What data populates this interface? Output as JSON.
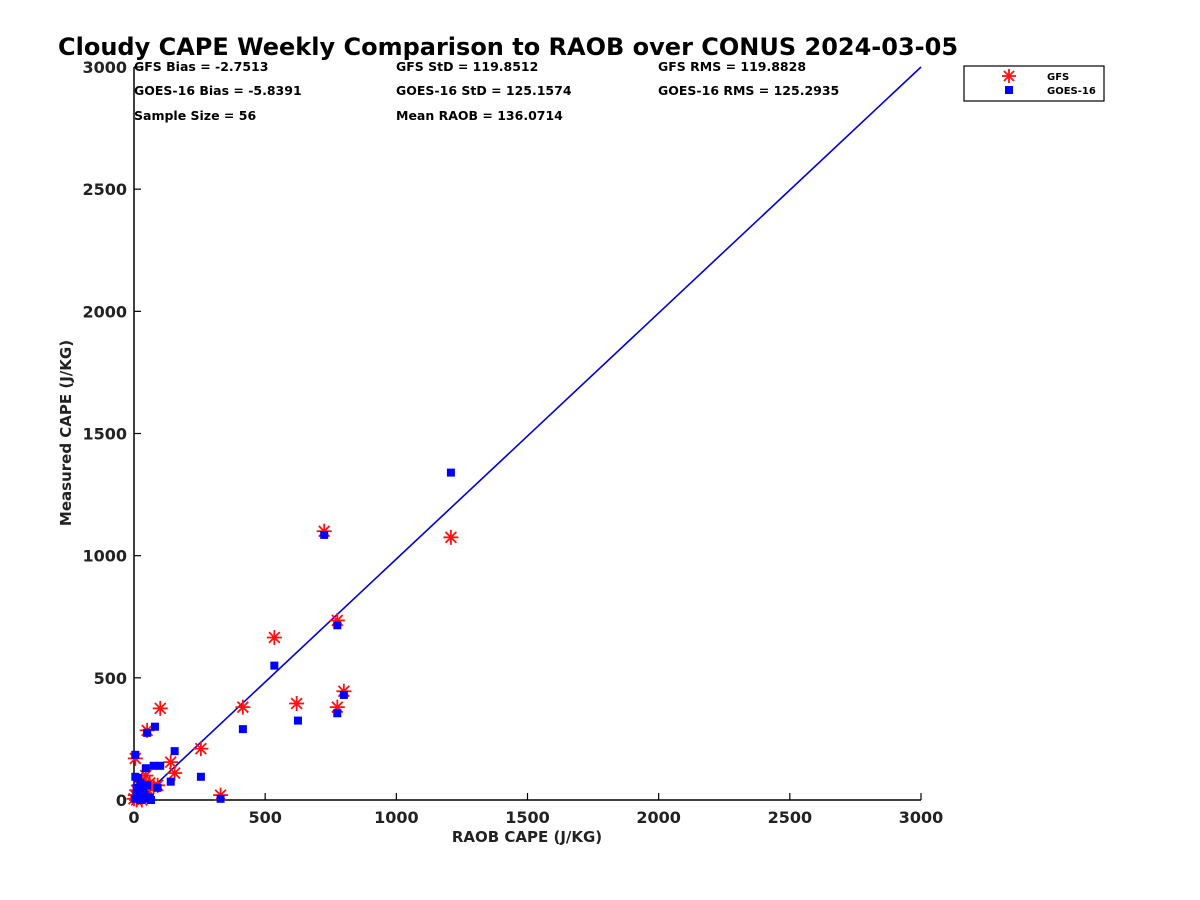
{
  "chart_data": {
    "type": "scatter",
    "title": "Cloudy CAPE Weekly Comparison to RAOB over CONUS 2024-03-05",
    "xlabel": "RAOB CAPE (J/KG)",
    "ylabel": "Measured CAPE (J/KG)",
    "xlim": [
      0,
      3000
    ],
    "ylim": [
      0,
      3000
    ],
    "xticks": [
      0,
      500,
      1000,
      1500,
      2000,
      2500,
      3000
    ],
    "yticks": [
      0,
      500,
      1000,
      1500,
      2000,
      2500,
      3000
    ],
    "grid": false,
    "legend_position": "top-right",
    "stats": [
      [
        "GFS Bias = -2.7513",
        "GFS StD = 119.8512",
        "GFS RMS = 119.8828"
      ],
      [
        "GOES-16 Bias = -5.8391",
        "GOES-16 StD = 125.1574",
        "GOES-16 RMS = 125.2935"
      ],
      [
        "Sample Size = 56",
        "Mean RAOB = 136.0714"
      ]
    ],
    "reference_line": {
      "x": [
        80,
        3000
      ],
      "y": [
        60,
        3000
      ],
      "color": "#0000dd"
    },
    "series": [
      {
        "name": "GFS",
        "marker": "asterisk",
        "color": "#ff1111",
        "points": [
          [
            1208,
            1075
          ],
          [
            725,
            1100
          ],
          [
            535,
            665
          ],
          [
            775,
            735
          ],
          [
            800,
            445
          ],
          [
            775,
            380
          ],
          [
            620,
            395
          ],
          [
            415,
            380
          ],
          [
            100,
            375
          ],
          [
            50,
            285
          ],
          [
            255,
            210
          ],
          [
            140,
            155
          ],
          [
            155,
            110
          ],
          [
            5,
            170
          ],
          [
            330,
            20
          ],
          [
            90,
            60
          ],
          [
            75,
            55
          ],
          [
            45,
            100
          ],
          [
            30,
            80
          ],
          [
            20,
            60
          ],
          [
            10,
            40
          ],
          [
            5,
            20
          ],
          [
            15,
            10
          ],
          [
            25,
            30
          ],
          [
            40,
            50
          ],
          [
            60,
            70
          ],
          [
            35,
            25
          ],
          [
            0,
            5
          ],
          [
            10,
            0
          ],
          [
            20,
            15
          ],
          [
            55,
            40
          ],
          [
            30,
            0
          ]
        ]
      },
      {
        "name": "GOES-16",
        "marker": "square",
        "color": "#0000ff",
        "points": [
          [
            1208,
            1340
          ],
          [
            725,
            1085
          ],
          [
            775,
            715
          ],
          [
            535,
            550
          ],
          [
            800,
            430
          ],
          [
            775,
            355
          ],
          [
            625,
            325
          ],
          [
            415,
            290
          ],
          [
            80,
            300
          ],
          [
            50,
            275
          ],
          [
            155,
            200
          ],
          [
            255,
            95
          ],
          [
            140,
            75
          ],
          [
            100,
            140
          ],
          [
            75,
            140
          ],
          [
            45,
            130
          ],
          [
            330,
            5
          ],
          [
            5,
            185
          ],
          [
            5,
            95
          ],
          [
            15,
            90
          ],
          [
            25,
            70
          ],
          [
            10,
            50
          ],
          [
            20,
            40
          ],
          [
            35,
            30
          ],
          [
            40,
            20
          ],
          [
            30,
            15
          ],
          [
            15,
            10
          ],
          [
            5,
            5
          ],
          [
            60,
            10
          ],
          [
            50,
            60
          ],
          [
            90,
            50
          ],
          [
            25,
            0
          ],
          [
            10,
            25
          ],
          [
            45,
            5
          ],
          [
            65,
            0
          ]
        ]
      }
    ]
  }
}
